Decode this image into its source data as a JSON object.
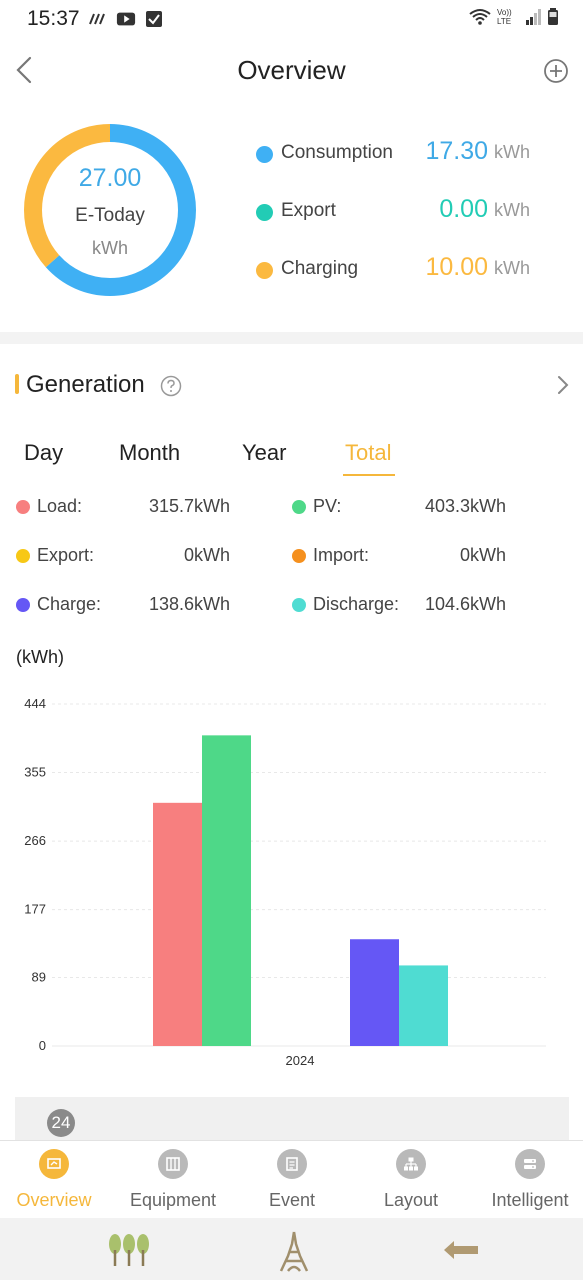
{
  "status_bar": {
    "time": "15:37",
    "left_icons": [
      "signal-strength-icon",
      "youtube-icon",
      "check-box-icon"
    ],
    "right_icons": [
      "wifi-icon",
      "volte-icon",
      "cell-signal-icon",
      "battery-icon"
    ],
    "volte_text": "Vo)) LTE"
  },
  "header": {
    "title": "Overview",
    "back_icon": "chevron-left-icon",
    "add_icon": "plus-circle-icon"
  },
  "overview": {
    "donut_value": "27.00",
    "donut_label": "E-Today",
    "donut_unit": "kWh",
    "donut_segments": [
      {
        "name": "Consumption",
        "value": 17.3,
        "color": "#3fb0f4"
      },
      {
        "name": "Export",
        "value": 0.0,
        "color": "#22ccb5"
      },
      {
        "name": "Charging",
        "value": 10.0,
        "color": "#fbb940"
      }
    ],
    "legend": [
      {
        "name": "Consumption",
        "value": "17.30",
        "unit": "kWh",
        "color": "#3fb0f4"
      },
      {
        "name": "Export",
        "value": "0.00",
        "unit": "kWh",
        "color": "#22ccb5"
      },
      {
        "name": "Charging",
        "value": "10.00",
        "unit": "kWh",
        "color": "#fbb940"
      }
    ]
  },
  "generation": {
    "title": "Generation",
    "help_icon": "question-circle-icon",
    "more_icon": "chevron-right-icon",
    "tabs": [
      "Day",
      "Month",
      "Year",
      "Total"
    ],
    "active_tab": "Total",
    "stats": [
      {
        "name": "Load:",
        "value": "315.7kWh",
        "color": "#f77f7f"
      },
      {
        "name": "PV:",
        "value": "403.3kWh",
        "color": "#4ed888"
      },
      {
        "name": "Export:",
        "value": "0kWh",
        "color": "#f7c816"
      },
      {
        "name": "Import:",
        "value": "0kWh",
        "color": "#f5901e"
      },
      {
        "name": "Charge:",
        "value": "138.6kWh",
        "color": "#6557f5"
      },
      {
        "name": "Discharge:",
        "value": "104.6kWh",
        "color": "#4fdcd2"
      }
    ],
    "unit_label": "(kWh)"
  },
  "chart_data": {
    "type": "bar",
    "categories": [
      "2024"
    ],
    "series": [
      {
        "name": "Load",
        "values": [
          315.7
        ],
        "color": "#f77f7f"
      },
      {
        "name": "PV",
        "values": [
          403.3
        ],
        "color": "#4ed888"
      },
      {
        "name": "Export",
        "values": [
          0
        ],
        "color": "#f7c816"
      },
      {
        "name": "Import",
        "values": [
          0
        ],
        "color": "#f5901e"
      },
      {
        "name": "Charge",
        "values": [
          138.6
        ],
        "color": "#6557f5"
      },
      {
        "name": "Discharge",
        "values": [
          104.6
        ],
        "color": "#4fdcd2"
      }
    ],
    "y_ticks": [
      "0",
      "89",
      "177",
      "266",
      "355",
      "444"
    ],
    "ylim": [
      0,
      444
    ],
    "ylabel": "(kWh)",
    "xlabel": "",
    "grid": true
  },
  "pager": {
    "badge": "24"
  },
  "tabbar": {
    "items": [
      {
        "label": "Overview",
        "icon": "overview-icon",
        "active": true
      },
      {
        "label": "Equipment",
        "icon": "equipment-icon",
        "active": false
      },
      {
        "label": "Event",
        "icon": "event-icon",
        "active": false
      },
      {
        "label": "Layout",
        "icon": "layout-icon",
        "active": false
      },
      {
        "label": "Intelligent",
        "icon": "intelligent-icon",
        "active": false
      }
    ]
  },
  "system_nav": {
    "buttons": [
      "recent-apps-icon",
      "home-icon",
      "back-arrow-icon"
    ]
  }
}
